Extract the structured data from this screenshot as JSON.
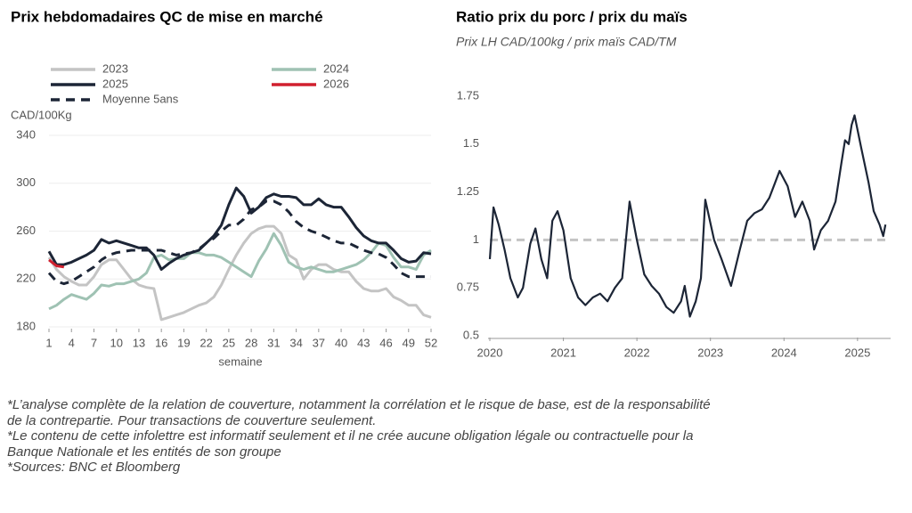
{
  "chart_data": [
    {
      "type": "line",
      "title": "Prix hebdomadaires QC de mise en marché",
      "y_label": "CAD/100Kg",
      "x_label": "semaine",
      "x": [
        1,
        2,
        3,
        4,
        5,
        6,
        7,
        8,
        9,
        10,
        11,
        12,
        13,
        14,
        15,
        16,
        17,
        18,
        19,
        20,
        21,
        22,
        23,
        24,
        25,
        26,
        27,
        28,
        29,
        30,
        31,
        32,
        33,
        34,
        35,
        36,
        37,
        38,
        39,
        40,
        41,
        42,
        43,
        44,
        45,
        46,
        47,
        48,
        49,
        50,
        51,
        52
      ],
      "xlim": [
        1,
        52
      ],
      "xticks": [
        1,
        4,
        7,
        10,
        13,
        16,
        19,
        22,
        25,
        28,
        31,
        34,
        37,
        40,
        43,
        46,
        49,
        52
      ],
      "ylim": [
        180,
        340
      ],
      "yticks": [
        180,
        220,
        260,
        300,
        340
      ],
      "grid": true,
      "series": [
        {
          "name": "2023",
          "color": "#c4c4c4",
          "style": "solid",
          "values": [
            238,
            228,
            222,
            218,
            215,
            215,
            222,
            232,
            236,
            236,
            228,
            220,
            215,
            213,
            212,
            186,
            188,
            190,
            192,
            195,
            198,
            200,
            205,
            215,
            228,
            240,
            250,
            258,
            262,
            264,
            264,
            258,
            240,
            236,
            220,
            228,
            232,
            232,
            228,
            226,
            226,
            218,
            212,
            210,
            210,
            212,
            205,
            202,
            198,
            198,
            190,
            188
          ]
        },
        {
          "name": "2024",
          "color": "#9fc2b3",
          "style": "solid",
          "values": [
            195,
            198,
            203,
            207,
            205,
            203,
            208,
            215,
            214,
            216,
            216,
            218,
            220,
            225,
            238,
            240,
            236,
            237,
            237,
            242,
            242,
            240,
            240,
            238,
            234,
            230,
            226,
            222,
            235,
            245,
            258,
            248,
            234,
            230,
            228,
            230,
            228,
            226,
            226,
            228,
            230,
            232,
            236,
            242,
            250,
            248,
            238,
            230,
            230,
            228,
            240,
            244
          ]
        },
        {
          "name": "2025",
          "color": "#1c2536",
          "style": "solid",
          "values": [
            243,
            232,
            232,
            234,
            237,
            240,
            244,
            253,
            250,
            252,
            250,
            248,
            246,
            246,
            240,
            228,
            233,
            237,
            240,
            242,
            244,
            250,
            256,
            265,
            282,
            296,
            289,
            275,
            280,
            288,
            291,
            289,
            289,
            288,
            282,
            282,
            287,
            282,
            280,
            280,
            272,
            263,
            256,
            252,
            250,
            250,
            244,
            237,
            234,
            235,
            242,
            241
          ]
        },
        {
          "name": "2026",
          "color": "#d0202e",
          "style": "solid",
          "values": [
            236,
            231,
            230,
            null,
            null,
            null,
            null,
            null,
            null,
            null,
            null,
            null,
            null,
            null,
            null,
            null,
            null,
            null,
            null,
            null,
            null,
            null,
            null,
            null,
            null,
            null,
            null,
            null,
            null,
            null,
            null,
            null,
            null,
            null,
            null,
            null,
            null,
            null,
            null,
            null,
            null,
            null,
            null,
            null,
            null,
            null,
            null,
            null,
            null,
            null,
            null,
            null
          ]
        },
        {
          "name": "Moyenne 5ans",
          "color": "#1c2536",
          "style": "dashed",
          "values": [
            225,
            218,
            216,
            218,
            222,
            226,
            230,
            236,
            240,
            242,
            243,
            244,
            244,
            244,
            244,
            244,
            242,
            240,
            241,
            242,
            245,
            250,
            254,
            260,
            265,
            265,
            270,
            278,
            280,
            285,
            285,
            282,
            276,
            268,
            263,
            260,
            258,
            255,
            252,
            250,
            250,
            247,
            244,
            242,
            241,
            238,
            232,
            225,
            222,
            222,
            222,
            222
          ]
        }
      ]
    },
    {
      "type": "line",
      "title": "Ratio prix du porc / prix du maïs",
      "subtitle": "Prix LH CAD/100kg / prix maïs CAD/TM",
      "x": [
        2020.0,
        2020.05,
        2020.12,
        2020.2,
        2020.28,
        2020.38,
        2020.45,
        2020.55,
        2020.62,
        2020.7,
        2020.78,
        2020.85,
        2020.92,
        2021.0,
        2021.1,
        2021.2,
        2021.3,
        2021.4,
        2021.5,
        2021.6,
        2021.7,
        2021.8,
        2021.9,
        2022.0,
        2022.1,
        2022.2,
        2022.3,
        2022.4,
        2022.5,
        2022.6,
        2022.65,
        2022.72,
        2022.8,
        2022.87,
        2022.93,
        2023.05,
        2023.15,
        2023.28,
        2023.4,
        2023.5,
        2023.6,
        2023.7,
        2023.8,
        2023.88,
        2023.94,
        2024.05,
        2024.15,
        2024.25,
        2024.35,
        2024.41,
        2024.5,
        2024.6,
        2024.7,
        2024.78,
        2024.83,
        2024.88,
        2024.92,
        2024.96,
        2025.05,
        2025.15,
        2025.22,
        2025.3,
        2025.35,
        2025.38
      ],
      "xlim": [
        2020,
        2025.45
      ],
      "xticks": [
        2020,
        2021,
        2022,
        2023,
        2024,
        2025
      ],
      "ylim": [
        0.5,
        1.75
      ],
      "yticks": [
        0.5,
        0.75,
        1,
        1.25,
        1.5,
        1.75
      ],
      "grid": false,
      "reference_line": {
        "value": 1,
        "color": "#c4c4c4"
      },
      "series": [
        {
          "color": "#1c2536",
          "style": "solid",
          "values": [
            0.9,
            1.17,
            1.08,
            0.95,
            0.8,
            0.7,
            0.75,
            0.98,
            1.06,
            0.9,
            0.8,
            1.1,
            1.15,
            1.05,
            0.8,
            0.7,
            0.66,
            0.7,
            0.72,
            0.68,
            0.75,
            0.8,
            1.2,
            1.0,
            0.82,
            0.76,
            0.72,
            0.65,
            0.62,
            0.68,
            0.76,
            0.6,
            0.68,
            0.8,
            1.21,
            1.0,
            0.9,
            0.76,
            0.95,
            1.1,
            1.14,
            1.16,
            1.22,
            1.3,
            1.36,
            1.28,
            1.12,
            1.2,
            1.1,
            0.95,
            1.05,
            1.1,
            1.2,
            1.4,
            1.52,
            1.5,
            1.6,
            1.65,
            1.48,
            1.3,
            1.15,
            1.08,
            1.02,
            1.08
          ]
        }
      ]
    }
  ],
  "notes": [
    "*L’analyse complète de la relation de couverture, notamment la corrélation et le risque de base, est de la responsabilité de la contrepartie. Pour transactions de couverture seulement.",
    "*Le contenu de cette infolettre est informatif seulement et il ne crée aucune obligation légale ou contractuelle pour la Banque Nationale et les entités de son groupe",
    "*Sources: BNC et Bloomberg"
  ]
}
